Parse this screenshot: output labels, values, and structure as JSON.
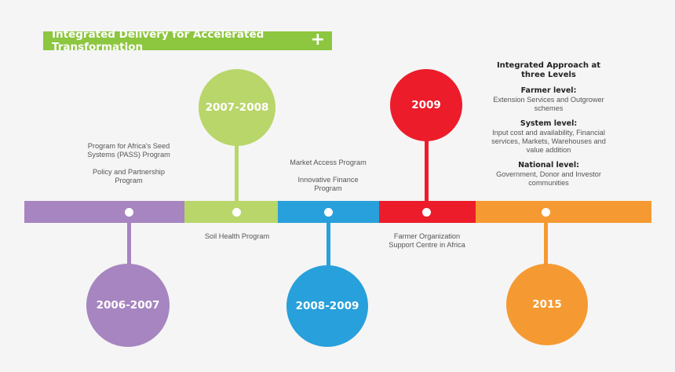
{
  "header": {
    "title": "Integrated Delivery for Accelerated Transformation",
    "plus_icon": "+"
  },
  "colors": {
    "purple": "#a685c0",
    "green": "#b9d66a",
    "blue": "#28a0db",
    "red": "#ec1c2b",
    "orange": "#f59a32"
  },
  "milestones": [
    {
      "year": "2006-2007",
      "programs_line1": "Program for Africa's Seed",
      "programs_line2": "Systems (PASS) Program",
      "programs_line3": "Policy and Partnership",
      "programs_line4": "Program"
    },
    {
      "year": "2007-2008",
      "program": "Soil Health Program"
    },
    {
      "year": "2008-2009",
      "programs_line1": "Market Access Program",
      "programs_line2": "Innovative Finance",
      "programs_line3": "Program"
    },
    {
      "year": "2009",
      "program_line1": "Farmer Organization",
      "program_line2": "Support Centre in Africa"
    },
    {
      "year": "2015"
    }
  ],
  "approach": {
    "title_line1": "Integrated Approach at",
    "title_line2": "three Levels",
    "farmer_heading": "Farmer level:",
    "farmer_line1": "Extension Services and Outgrower",
    "farmer_line2": "schemes",
    "system_heading": "System level:",
    "system_line1": "Input cost and availability, Financial",
    "system_line2": "services, Markets, Warehouses and",
    "system_line3": "value addition",
    "national_heading": "National level:",
    "national_line1": "Government, Donor and Investor",
    "national_line2": "communities"
  }
}
